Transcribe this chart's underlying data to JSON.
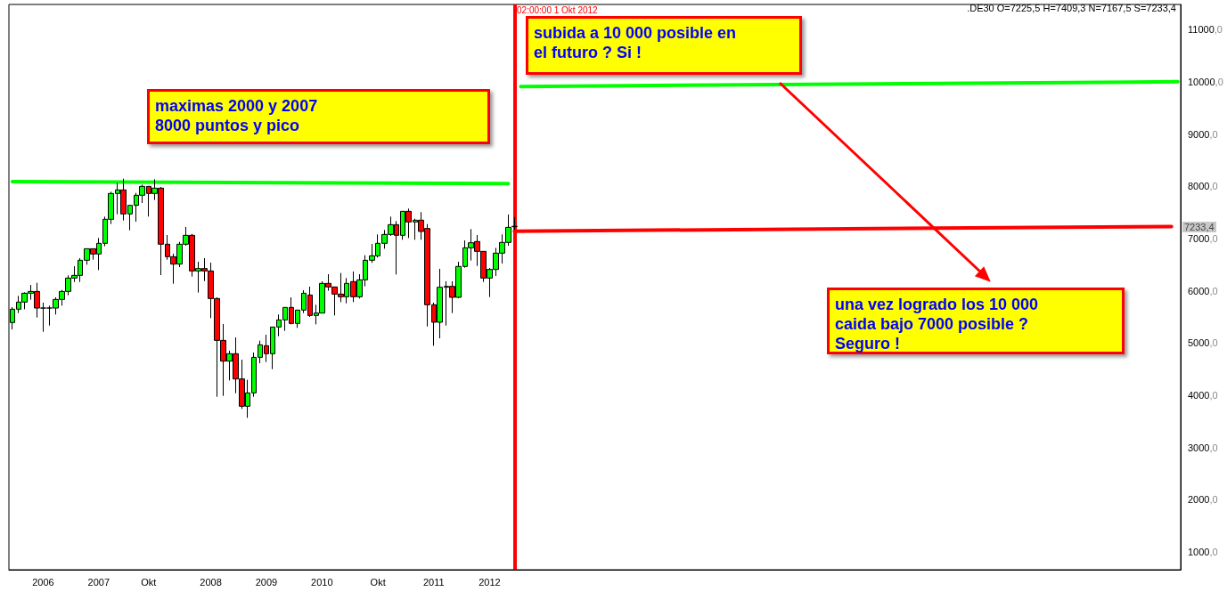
{
  "chart_data": {
    "type": "candlestick",
    "x": [
      "2006-01",
      "2006-02",
      "2006-03",
      "2006-04",
      "2006-05",
      "2006-06",
      "2006-07",
      "2006-08",
      "2006-09",
      "2006-10",
      "2006-11",
      "2006-12",
      "2007-01",
      "2007-02",
      "2007-03",
      "2007-04",
      "2007-05",
      "2007-06",
      "2007-07",
      "2007-08",
      "2007-09",
      "2007-10",
      "2007-11",
      "2007-12",
      "2008-01",
      "2008-02",
      "2008-03",
      "2008-04",
      "2008-05",
      "2008-06",
      "2008-07",
      "2008-08",
      "2008-09",
      "2008-10",
      "2008-11",
      "2008-12",
      "2009-01",
      "2009-02",
      "2009-03",
      "2009-04",
      "2009-05",
      "2009-06",
      "2009-07",
      "2009-08",
      "2009-09",
      "2009-10",
      "2009-11",
      "2009-12",
      "2010-01",
      "2010-02",
      "2010-03",
      "2010-04",
      "2010-05",
      "2010-06",
      "2010-07",
      "2010-08",
      "2010-09",
      "2010-10",
      "2010-11",
      "2010-12",
      "2011-01",
      "2011-02",
      "2011-03",
      "2011-04",
      "2011-05",
      "2011-06",
      "2011-07",
      "2011-08",
      "2011-09",
      "2011-10",
      "2011-11",
      "2011-12",
      "2012-01",
      "2012-02",
      "2012-03",
      "2012-04",
      "2012-05",
      "2012-06",
      "2012-07",
      "2012-08",
      "2012-09",
      "2012-10"
    ],
    "ohlc": [
      [
        5391,
        5686,
        5260,
        5647
      ],
      [
        5647,
        5902,
        5573,
        5783
      ],
      [
        5783,
        5970,
        5647,
        5953
      ],
      [
        5953,
        6112,
        5828,
        5987
      ],
      [
        5987,
        6152,
        5488,
        5669
      ],
      [
        5669,
        5772,
        5215,
        5669
      ],
      [
        5669,
        5715,
        5334,
        5669
      ],
      [
        5669,
        5874,
        5545,
        5834
      ],
      [
        5834,
        6016,
        5715,
        5987
      ],
      [
        5987,
        6294,
        5914,
        6243
      ],
      [
        6243,
        6470,
        6169,
        6294
      ],
      [
        6294,
        6624,
        6169,
        6584
      ],
      [
        6584,
        6805,
        6499,
        6805
      ],
      [
        6805,
        6805,
        6595,
        6703
      ],
      [
        6703,
        7010,
        6396,
        6908
      ],
      [
        6908,
        7419,
        6851,
        7368
      ],
      [
        7368,
        7896,
        7277,
        7862
      ],
      [
        7862,
        8061,
        7464,
        7930
      ],
      [
        7930,
        8146,
        7345,
        7470
      ],
      [
        7470,
        7635,
        7158,
        7635
      ],
      [
        7635,
        7873,
        7322,
        7828
      ],
      [
        7828,
        8032,
        7680,
        7998
      ],
      [
        7998,
        7998,
        7419,
        7862
      ],
      [
        7862,
        8134,
        7737,
        7964
      ],
      [
        7964,
        7987,
        6300,
        6891
      ],
      [
        6891,
        7067,
        6595,
        6652
      ],
      [
        6652,
        6709,
        6135,
        6510
      ],
      [
        6510,
        6936,
        6453,
        6891
      ],
      [
        6891,
        7220,
        6862,
        7061
      ],
      [
        7061,
        7089,
        6271,
        6379
      ],
      [
        6379,
        6555,
        5965,
        6425
      ],
      [
        6425,
        6624,
        6186,
        6379
      ],
      [
        6379,
        6538,
        5476,
        5851
      ],
      [
        5851,
        5874,
        3971,
        5050
      ],
      [
        5050,
        5363,
        3988,
        4653
      ],
      [
        4653,
        4851,
        4284,
        4795
      ],
      [
        4795,
        5107,
        4039,
        4312
      ],
      [
        4312,
        4681,
        3738,
        3789
      ],
      [
        3789,
        4295,
        3568,
        4045
      ],
      [
        4045,
        4817,
        3971,
        4726
      ],
      [
        4726,
        5045,
        4613,
        4965
      ],
      [
        4948,
        5158,
        4636,
        4795
      ],
      [
        4795,
        5306,
        4499,
        5306
      ],
      [
        5306,
        5545,
        5130,
        5442
      ],
      [
        5442,
        5681,
        5232,
        5681
      ],
      [
        5681,
        5874,
        5357,
        5374
      ],
      [
        5374,
        5630,
        5289,
        5630
      ],
      [
        5630,
        6010,
        5573,
        5953
      ],
      [
        5919,
        6078,
        5499,
        5527
      ],
      [
        5527,
        5732,
        5357,
        5573
      ],
      [
        5573,
        6181,
        5573,
        6141
      ],
      [
        6141,
        6317,
        6000,
        6073
      ],
      [
        6073,
        6073,
        5527,
        5936
      ],
      [
        5936,
        6340,
        5783,
        5885
      ],
      [
        5885,
        6243,
        5760,
        6141
      ],
      [
        6175,
        6368,
        5783,
        5885
      ],
      [
        5885,
        6317,
        5851,
        6209
      ],
      [
        6209,
        6680,
        6084,
        6584
      ],
      [
        6584,
        6896,
        6533,
        6669
      ],
      [
        6669,
        7078,
        6635,
        6908
      ],
      [
        6908,
        7163,
        6805,
        7078
      ],
      [
        7078,
        7419,
        7050,
        7265
      ],
      [
        7265,
        7334,
        6311,
        7061
      ],
      [
        7061,
        7521,
        6976,
        7521
      ],
      [
        7521,
        7572,
        7010,
        7317
      ],
      [
        7317,
        7379,
        6976,
        7351
      ],
      [
        7351,
        7504,
        6976,
        7135
      ],
      [
        7192,
        7277,
        5317,
        5732
      ],
      [
        5732,
        5772,
        4948,
        5397
      ],
      [
        5397,
        6419,
        5090,
        6067
      ],
      [
        6067,
        6181,
        5334,
        6084
      ],
      [
        6084,
        6181,
        5573,
        5874
      ],
      [
        5874,
        6555,
        5857,
        6465
      ],
      [
        6465,
        6964,
        6442,
        6822
      ],
      [
        6822,
        7180,
        6578,
        6919
      ],
      [
        6942,
        7067,
        6476,
        6754
      ],
      [
        6754,
        6754,
        6169,
        6243
      ],
      [
        6243,
        6436,
        5880,
        6408
      ],
      [
        6408,
        6822,
        6283,
        6720
      ],
      [
        6720,
        7078,
        6521,
        6925
      ],
      [
        6925,
        7459,
        6862,
        7214
      ],
      [
        7225.5,
        7409.3,
        7167.5,
        7233.4
      ]
    ],
    "colors": [
      "#00ff00",
      "#00ff00",
      "#00ff00",
      "#00ff00",
      "#ff0000",
      "#000000",
      "#000000",
      "#00ff00",
      "#00ff00",
      "#00ff00",
      "#00ff00",
      "#00ff00",
      "#00ff00",
      "#ff0000",
      "#00ff00",
      "#00ff00",
      "#00ff00",
      "#00ff00",
      "#ff0000",
      "#00ff00",
      "#00ff00",
      "#00ff00",
      "#ff0000",
      "#00ff00",
      "#ff0000",
      "#ff0000",
      "#ff0000",
      "#00ff00",
      "#00ff00",
      "#ff0000",
      "#00ff00",
      "#ff0000",
      "#ff0000",
      "#ff0000",
      "#ff0000",
      "#00ff00",
      "#ff0000",
      "#ff0000",
      "#00ff00",
      "#00ff00",
      "#00ff00",
      "#ff0000",
      "#00ff00",
      "#00ff00",
      "#00ff00",
      "#ff0000",
      "#00ff00",
      "#00ff00",
      "#ff0000",
      "#00ff00",
      "#00ff00",
      "#ff0000",
      "#ff0000",
      "#ff0000",
      "#00ff00",
      "#ff0000",
      "#00ff00",
      "#00ff00",
      "#00ff00",
      "#00ff00",
      "#00ff00",
      "#00ff00",
      "#ff0000",
      "#00ff00",
      "#ff0000",
      "#00ff00",
      "#ff0000",
      "#ff0000",
      "#ff0000",
      "#00ff00",
      "#00ff00",
      "#ff0000",
      "#00ff00",
      "#00ff00",
      "#00ff00",
      "#ff0000",
      "#ff0000",
      "#00ff00",
      "#00ff00",
      "#00ff00",
      "#00ff00",
      "#000080"
    ],
    "series": [
      {
        "type": "line",
        "color": "#00ff00",
        "x": [
          "2006-01",
          "2012-09"
        ],
        "values": [
          8090,
          8050
        ]
      },
      {
        "type": "line",
        "color": "#00ff00",
        "x": [
          "2012-11",
          "2021-09"
        ],
        "values": [
          9910,
          10000
        ]
      },
      {
        "type": "line",
        "color": "#ff0000",
        "x": [
          "2012-10",
          "2021-08"
        ],
        "values": [
          7140,
          7230
        ]
      }
    ],
    "ref_lines": [
      {
        "axis": "x",
        "value": "2012-10-01T02:00",
        "label": "02:00:00 1 Okt 2012",
        "color": "#ff0000",
        "line_style": "solid"
      }
    ],
    "annotations": [
      "maximas 2000 y 2007\n8000 puntos y pico",
      "subida a 10 000 posible en\nel futuro ? Si !",
      "una vez logrado los 10 000\ncaida bajo 7000 posible ?\nSeguro !",
      ".DE30 O=7225,5 H=7409,3 N=7167,5 S=7233,4",
      "7233,4"
    ],
    "xlim": [
      "2005-12-15",
      "2021-09-15"
    ],
    "xticks": [
      {
        "value": "2006-06",
        "label": "2006"
      },
      {
        "value": "2007-03",
        "label": "2007"
      },
      {
        "value": "2007-11",
        "label": "Okt"
      },
      {
        "value": "2008-09",
        "label": "2008"
      },
      {
        "value": "2009-06",
        "label": "2009"
      },
      {
        "value": "2010-03",
        "label": "2010"
      },
      {
        "value": "2010-12",
        "label": "Okt"
      },
      {
        "value": "2011-09",
        "label": "2011"
      },
      {
        "value": "2012-06",
        "label": "2012"
      }
    ],
    "ylim": [
      660,
      11480
    ],
    "yticks": [
      {
        "value": 1000,
        "label": "1000,0"
      },
      {
        "value": 2000,
        "label": "2000,0"
      },
      {
        "value": 3000,
        "label": "3000,0"
      },
      {
        "value": 4000,
        "label": "4000,0"
      },
      {
        "value": 5000,
        "label": "5000,0"
      },
      {
        "value": 6000,
        "label": "6000,0"
      },
      {
        "value": 7000,
        "label": "7000,0"
      },
      {
        "value": 8000,
        "label": "8000,0"
      },
      {
        "value": 9000,
        "label": "9000,0"
      },
      {
        "value": 10000,
        "label": "10000,0"
      },
      {
        "value": 11000,
        "label": "11000,0"
      }
    ],
    "grid": false
  }
}
